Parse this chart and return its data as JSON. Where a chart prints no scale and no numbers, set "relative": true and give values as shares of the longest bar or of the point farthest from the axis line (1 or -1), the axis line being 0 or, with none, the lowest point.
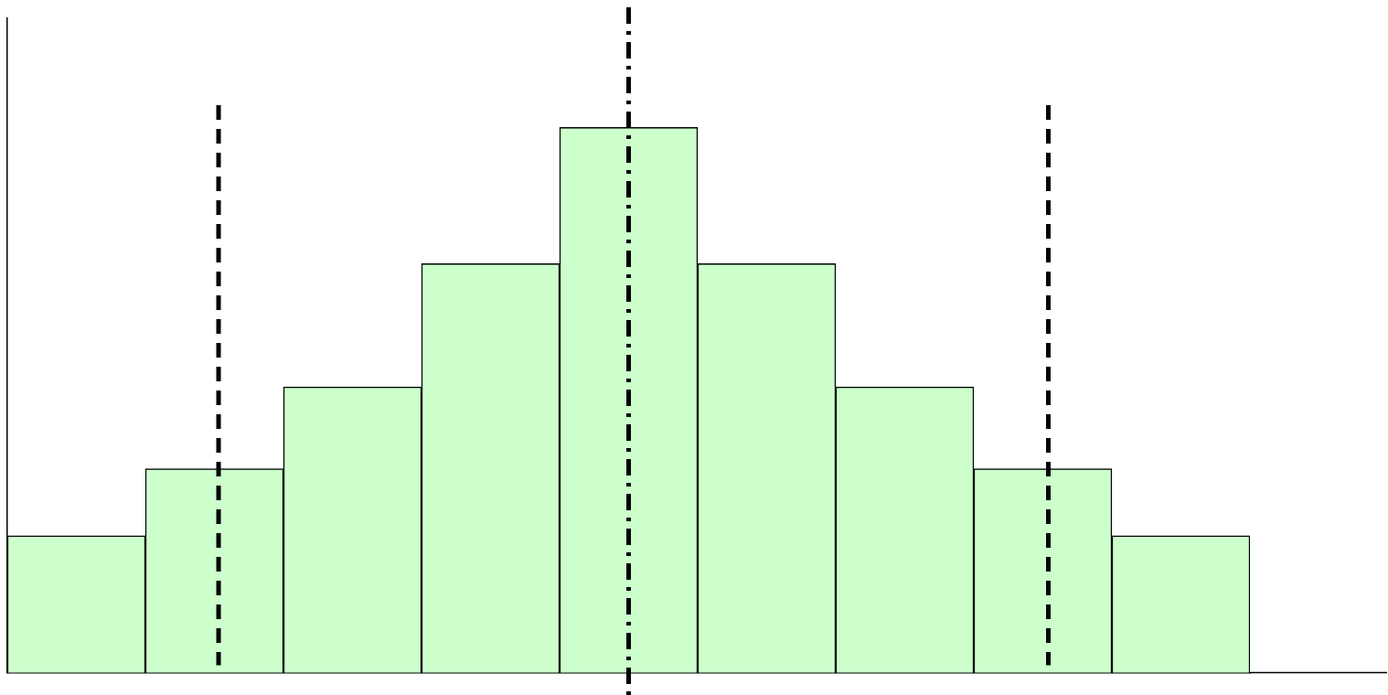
{
  "chart_data": {
    "type": "bar",
    "relative": true,
    "categories": [
      null,
      null,
      null,
      null,
      null,
      null,
      null,
      null,
      null
    ],
    "values": [
      0.251,
      0.374,
      0.524,
      0.75,
      1,
      0.75,
      0.524,
      0.374,
      0.251
    ],
    "color": "#ccffcc",
    "grid": false,
    "legend": false
  }
}
